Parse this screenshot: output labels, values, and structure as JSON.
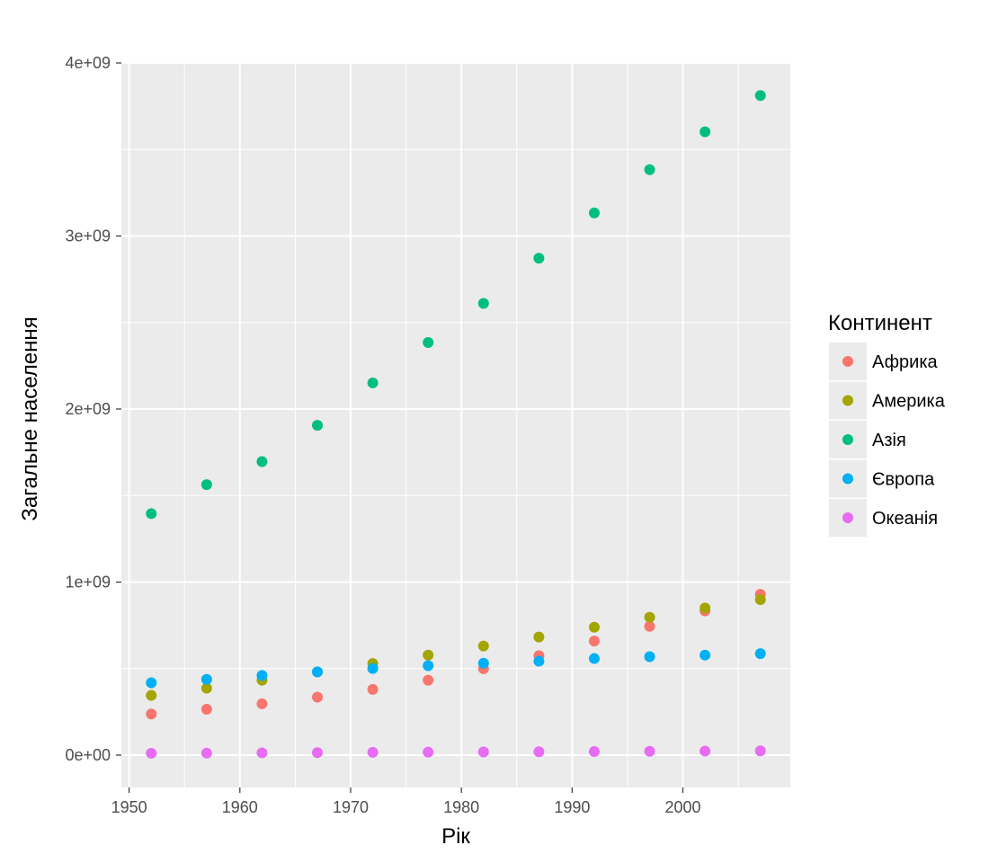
{
  "chart_data": {
    "type": "scatter",
    "title": "",
    "xlabel": "Рік",
    "ylabel": "Загальне населення",
    "xlim": [
      1949.3,
      2009.7
    ],
    "ylim": [
      -180000000,
      4000000000
    ],
    "x_ticks": [
      1950,
      1960,
      1970,
      1980,
      1990,
      2000
    ],
    "x_tick_labels": [
      "1950",
      "1960",
      "1970",
      "1980",
      "1990",
      "2000"
    ],
    "y_ticks": [
      0,
      1000000000,
      2000000000,
      3000000000,
      4000000000
    ],
    "y_tick_labels": [
      "0e+00",
      "1e+09",
      "2e+09",
      "3e+09",
      "4e+09"
    ],
    "x": [
      1952,
      1957,
      1962,
      1967,
      1972,
      1977,
      1982,
      1987,
      1992,
      1997,
      2002,
      2007
    ],
    "grid": true,
    "legend_title": "Континент",
    "legend_position": "right",
    "series": [
      {
        "name": "Африка",
        "color": "#F8766D",
        "values": [
          237640501,
          264837738,
          296516865,
          335289489,
          379879541,
          433061021,
          499348587,
          574834110,
          659081517,
          743832984,
          833723916,
          929539692
        ]
      },
      {
        "name": "Америка",
        "color": "#A3A500",
        "values": [
          345152446,
          386953916,
          433270254,
          480746623,
          529384210,
          578067699,
          630290920,
          682753971,
          739274104,
          796900410,
          849772762,
          898871184
        ]
      },
      {
        "name": "Азія",
        "color": "#00BF7D",
        "values": [
          1395357351,
          1562780599,
          1696357182,
          1905662900,
          2150972248,
          2384513556,
          2610135582,
          2871220762,
          3133292191,
          3383285500,
          3601802203,
          3811953827
        ]
      },
      {
        "name": "Європа",
        "color": "#00B0F6",
        "values": [
          418120846,
          437890351,
          460355155,
          481178958,
          500635059,
          517164531,
          531266901,
          543094160,
          558142797,
          568944148,
          578223869,
          586098529
        ]
      },
      {
        "name": "Океанія",
        "color": "#E76BF3",
        "values": [
          10686006,
          11941976,
          13283518,
          14600414,
          16106100,
          17239000,
          18394850,
          19574415,
          20919651,
          22241430,
          23454829,
          24549947
        ]
      }
    ]
  }
}
